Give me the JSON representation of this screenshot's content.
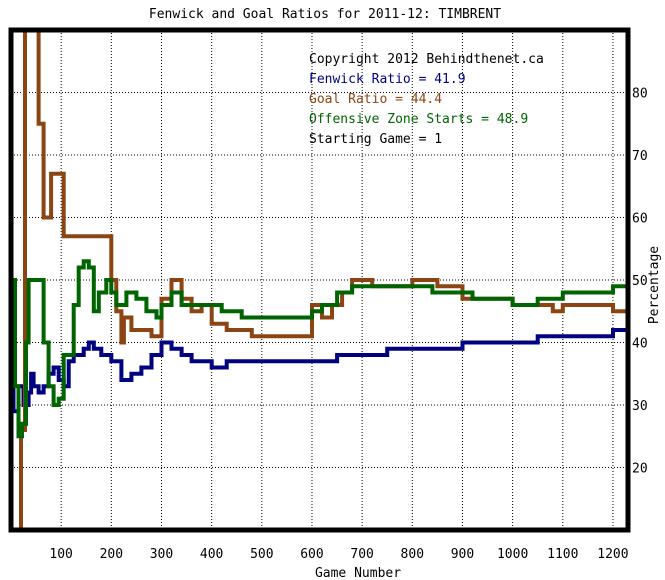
{
  "chart_data": {
    "type": "line",
    "title": "Fenwick and Goal Ratios for 2011-12: TIMBRENT",
    "xlabel": "Game Number",
    "ylabel": "Percentage",
    "xlim": [
      0,
      1230
    ],
    "ylim": [
      10,
      90
    ],
    "x_ticks": [
      100,
      200,
      300,
      400,
      500,
      600,
      700,
      800,
      900,
      1000,
      1100,
      1200
    ],
    "y_ticks": [
      20,
      30,
      40,
      50,
      60,
      70,
      80
    ],
    "grid": true,
    "legend_position": "top-right",
    "annotations": [
      {
        "text": "Copyright 2012 Behindthenet.ca",
        "color": "#000000"
      },
      {
        "text": "Fenwick Ratio = 41.9",
        "color": "#000080"
      },
      {
        "text": "Goal Ratio = 44.4",
        "color": "#8B4513"
      },
      {
        "text": "Offensive Zone Starts = 48.9",
        "color": "#006400"
      },
      {
        "text": "Starting Game = 1",
        "color": "#000000"
      }
    ],
    "series": [
      {
        "name": "Fenwick Ratio",
        "color": "#000080",
        "points": [
          [
            0,
            50
          ],
          [
            5,
            29
          ],
          [
            15,
            33
          ],
          [
            25,
            30
          ],
          [
            35,
            32
          ],
          [
            40,
            35
          ],
          [
            45,
            33
          ],
          [
            55,
            32
          ],
          [
            65,
            33
          ],
          [
            75,
            35
          ],
          [
            85,
            36
          ],
          [
            95,
            34
          ],
          [
            105,
            33
          ],
          [
            115,
            37
          ],
          [
            125,
            38
          ],
          [
            135,
            38
          ],
          [
            145,
            39
          ],
          [
            155,
            40
          ],
          [
            165,
            39
          ],
          [
            180,
            38
          ],
          [
            200,
            37
          ],
          [
            220,
            34
          ],
          [
            240,
            35
          ],
          [
            260,
            36
          ],
          [
            280,
            38
          ],
          [
            300,
            40
          ],
          [
            320,
            39
          ],
          [
            340,
            38
          ],
          [
            360,
            37
          ],
          [
            380,
            37
          ],
          [
            400,
            36
          ],
          [
            430,
            37
          ],
          [
            460,
            37
          ],
          [
            500,
            37
          ],
          [
            550,
            37
          ],
          [
            600,
            37
          ],
          [
            650,
            38
          ],
          [
            700,
            38
          ],
          [
            750,
            39
          ],
          [
            800,
            39
          ],
          [
            850,
            39
          ],
          [
            900,
            40
          ],
          [
            950,
            40
          ],
          [
            1000,
            40
          ],
          [
            1050,
            41
          ],
          [
            1100,
            41
          ],
          [
            1150,
            41
          ],
          [
            1200,
            42
          ],
          [
            1230,
            41.9
          ]
        ]
      },
      {
        "name": "Goal Ratio",
        "color": "#8B4513",
        "points": [
          [
            20,
            10
          ],
          [
            20,
            26
          ],
          [
            28,
            90
          ],
          [
            45,
            90
          ],
          [
            55,
            75
          ],
          [
            65,
            60
          ],
          [
            80,
            67
          ],
          [
            105,
            57
          ],
          [
            125,
            57
          ],
          [
            200,
            50
          ],
          [
            210,
            45
          ],
          [
            220,
            40
          ],
          [
            225,
            44
          ],
          [
            240,
            42
          ],
          [
            260,
            42
          ],
          [
            280,
            41
          ],
          [
            300,
            47
          ],
          [
            320,
            50
          ],
          [
            340,
            47
          ],
          [
            360,
            45
          ],
          [
            380,
            46
          ],
          [
            400,
            43
          ],
          [
            430,
            42
          ],
          [
            460,
            42
          ],
          [
            480,
            41
          ],
          [
            550,
            41
          ],
          [
            580,
            41
          ],
          [
            600,
            46
          ],
          [
            620,
            44
          ],
          [
            640,
            46
          ],
          [
            660,
            48
          ],
          [
            680,
            50
          ],
          [
            720,
            49
          ],
          [
            760,
            49
          ],
          [
            800,
            50
          ],
          [
            850,
            49
          ],
          [
            900,
            47
          ],
          [
            950,
            47
          ],
          [
            1000,
            46
          ],
          [
            1050,
            46
          ],
          [
            1080,
            45
          ],
          [
            1100,
            46
          ],
          [
            1150,
            46
          ],
          [
            1200,
            45
          ],
          [
            1230,
            44.4
          ]
        ]
      },
      {
        "name": "Offensive Zone Starts",
        "color": "#006400",
        "points": [
          [
            0,
            50
          ],
          [
            8,
            33
          ],
          [
            15,
            25
          ],
          [
            22,
            27
          ],
          [
            30,
            40
          ],
          [
            35,
            50
          ],
          [
            55,
            50
          ],
          [
            65,
            40
          ],
          [
            75,
            33
          ],
          [
            85,
            30
          ],
          [
            95,
            31
          ],
          [
            105,
            38
          ],
          [
            115,
            38
          ],
          [
            125,
            46
          ],
          [
            135,
            52
          ],
          [
            145,
            53
          ],
          [
            155,
            52
          ],
          [
            165,
            45
          ],
          [
            175,
            48
          ],
          [
            190,
            50
          ],
          [
            200,
            48
          ],
          [
            210,
            46
          ],
          [
            230,
            48
          ],
          [
            250,
            47
          ],
          [
            270,
            45
          ],
          [
            290,
            44
          ],
          [
            300,
            46
          ],
          [
            320,
            48
          ],
          [
            340,
            46
          ],
          [
            380,
            46
          ],
          [
            420,
            45
          ],
          [
            460,
            44
          ],
          [
            500,
            44
          ],
          [
            540,
            44
          ],
          [
            580,
            44
          ],
          [
            600,
            45
          ],
          [
            620,
            46
          ],
          [
            650,
            48
          ],
          [
            680,
            49
          ],
          [
            720,
            49
          ],
          [
            760,
            49
          ],
          [
            800,
            49
          ],
          [
            840,
            48
          ],
          [
            880,
            48
          ],
          [
            920,
            47
          ],
          [
            960,
            47
          ],
          [
            1000,
            46
          ],
          [
            1050,
            47
          ],
          [
            1100,
            48
          ],
          [
            1150,
            48
          ],
          [
            1200,
            49
          ],
          [
            1230,
            48.9
          ]
        ]
      }
    ]
  }
}
